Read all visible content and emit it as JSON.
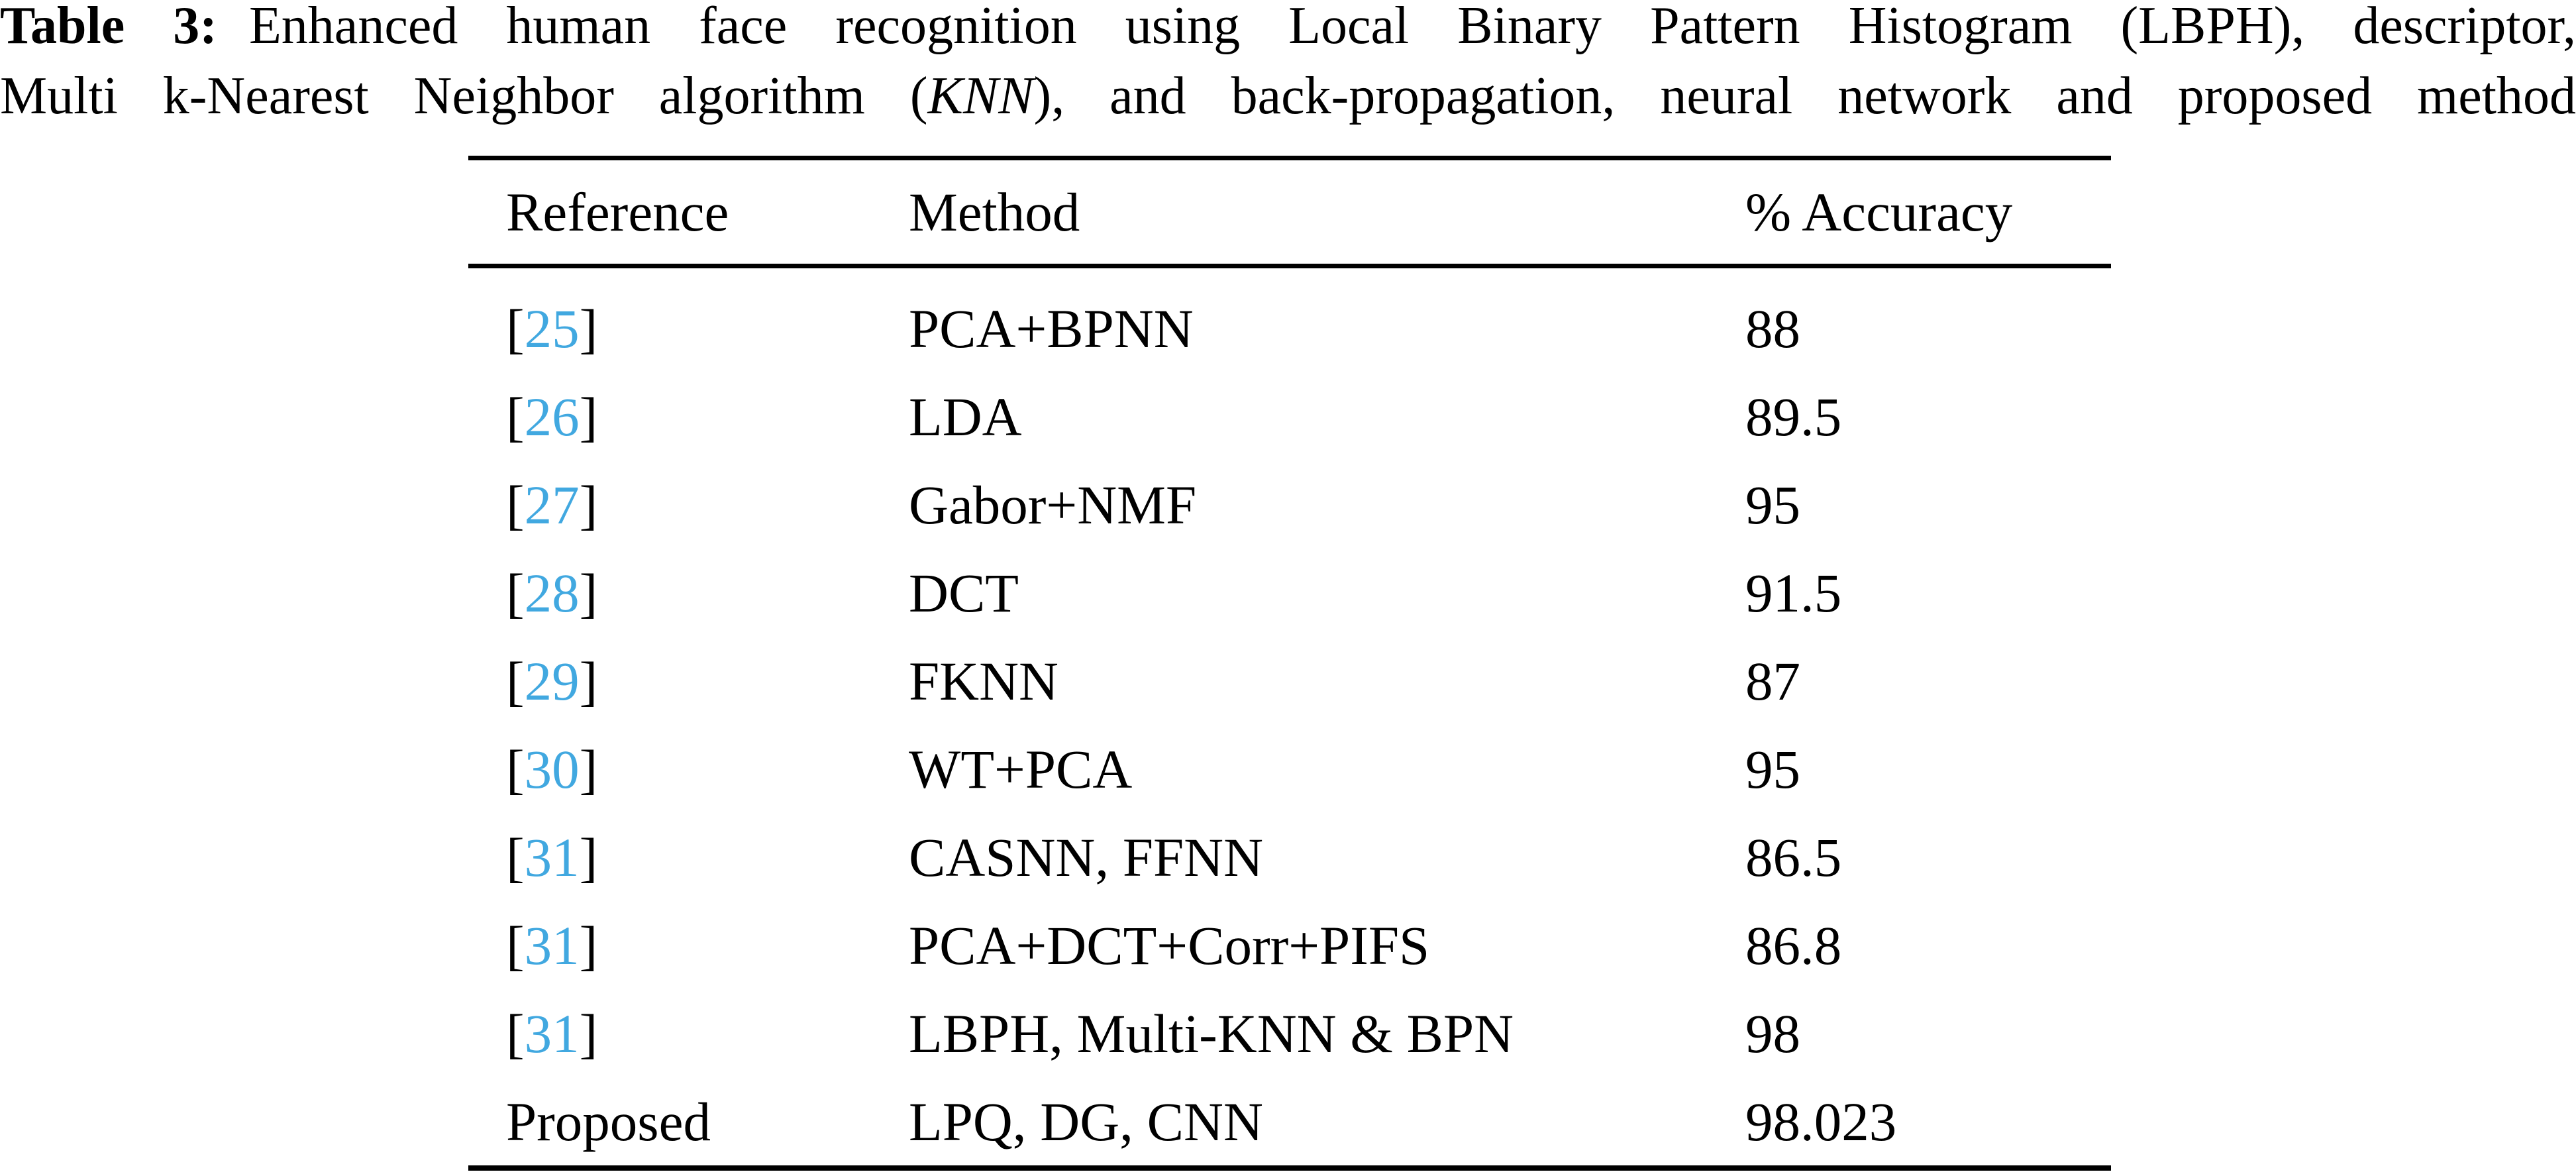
{
  "caption": {
    "label": "Table 3:",
    "line1": "Enhanced human face recognition using Local Binary Pattern Histogram (LBPH), descriptor,",
    "line2_pre": "Multi k-Nearest Neighbor algorithm (",
    "line2_italic": "KNN",
    "line2_post": "), and back-propagation, neural network and proposed method"
  },
  "table": {
    "headers": [
      "Reference",
      "Method",
      "% Accuracy"
    ],
    "rows": [
      {
        "bracket_open": "[",
        "ref": "25",
        "bracket_close": "]",
        "method": "PCA+BPNN",
        "accuracy": "88"
      },
      {
        "bracket_open": "[",
        "ref": "26",
        "bracket_close": "]",
        "method": "LDA",
        "accuracy": "89.5"
      },
      {
        "bracket_open": "[",
        "ref": "27",
        "bracket_close": "]",
        "method": "Gabor+NMF",
        "accuracy": "95"
      },
      {
        "bracket_open": "[",
        "ref": "28",
        "bracket_close": "]",
        "method": "DCT",
        "accuracy": "91.5"
      },
      {
        "bracket_open": "[",
        "ref": "29",
        "bracket_close": "]",
        "method": "FKNN",
        "accuracy": "87"
      },
      {
        "bracket_open": "[",
        "ref": "30",
        "bracket_close": "]",
        "method": "WT+PCA",
        "accuracy": "95"
      },
      {
        "bracket_open": "[",
        "ref": "31",
        "bracket_close": "]",
        "method": "CASNN, FFNN",
        "accuracy": "86.5"
      },
      {
        "bracket_open": "[",
        "ref": "31",
        "bracket_close": "]",
        "method": "PCA+DCT+Corr+PIFS",
        "accuracy": "86.8"
      },
      {
        "bracket_open": "[",
        "ref": "31",
        "bracket_close": "]",
        "method": "LBPH, Multi-KNN & BPN",
        "accuracy": "98"
      },
      {
        "ref": "Proposed",
        "method": "LPQ, DG, CNN",
        "accuracy": "98.023"
      }
    ]
  },
  "colors": {
    "citation_link": "#41A8E0",
    "text": "#000000",
    "rule": "#000000",
    "background": "#FFFFFF"
  }
}
